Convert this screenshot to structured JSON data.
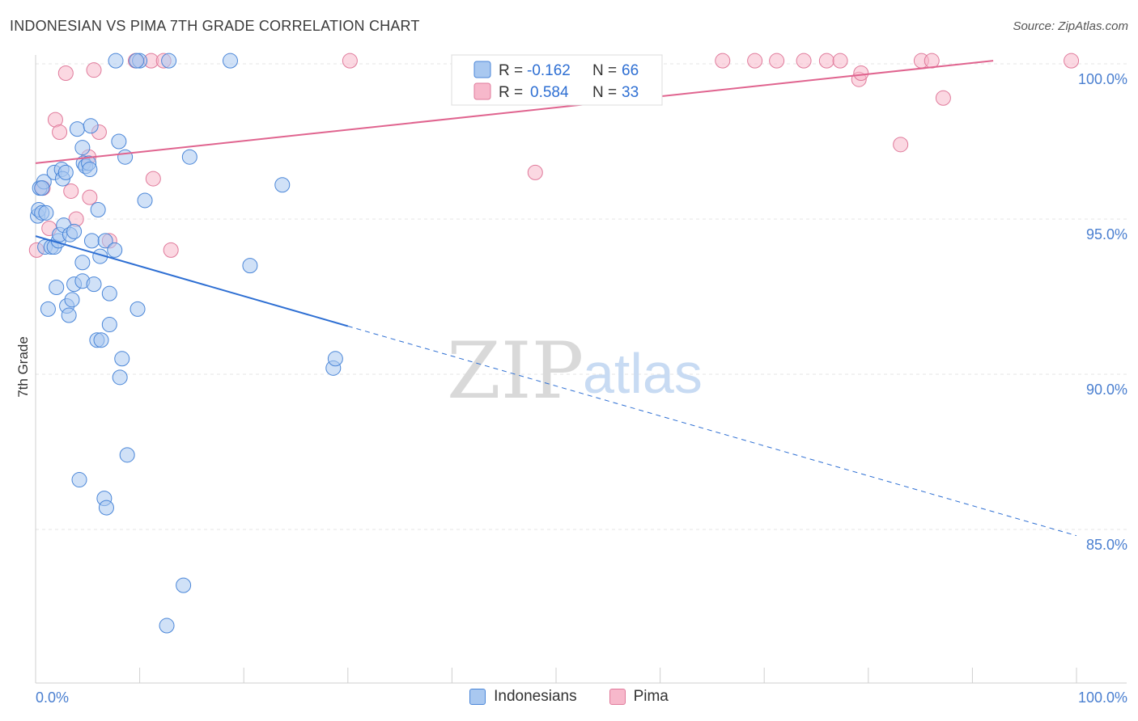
{
  "title": "INDONESIAN VS PIMA 7TH GRADE CORRELATION CHART",
  "source": "Source: ZipAtlas.com",
  "watermark": {
    "zip": "ZIP",
    "atlas": "atlas"
  },
  "colors": {
    "blue_fill": "#a9c8f0",
    "blue_stroke": "#4a86d8",
    "blue_line": "#2e6fd3",
    "pink_fill": "#f7b8cb",
    "pink_stroke": "#e07a9b",
    "pink_line": "#e0648f",
    "grid": "#e4e4e4",
    "tick_label": "#4a7fd0"
  },
  "legend": {
    "rows": [
      {
        "r_label": "R =",
        "r_value": "-0.162",
        "n_label": "N =",
        "n_value": "66",
        "color": "#a9c8f0"
      },
      {
        "r_label": "R =",
        "r_value": "0.584",
        "n_label": "N =",
        "n_value": "33",
        "color": "#f7b8cb"
      }
    ]
  },
  "bottom_legend": [
    {
      "label": "Indonesians",
      "color": "#a9c8f0"
    },
    {
      "label": "Pima",
      "color": "#f7b8cb"
    }
  ],
  "chart_data": {
    "type": "scatter",
    "title": "INDONESIAN VS PIMA 7TH GRADE CORRELATION CHART",
    "xlabel": "",
    "ylabel": "7th Grade",
    "xlim": [
      0,
      100
    ],
    "ylim": [
      80.3,
      101.0
    ],
    "x_tick_labels": [
      "0.0%",
      "100.0%"
    ],
    "y_ticks": [
      85,
      90,
      95,
      100
    ],
    "y_tick_labels": [
      "85.0%",
      "90.0%",
      "95.0%",
      "100.0%"
    ],
    "series": [
      {
        "name": "Indonesians",
        "r": -0.162,
        "n": 66,
        "trend": {
          "x0": 0,
          "y0": 94.45,
          "x1": 30,
          "y1": 91.55,
          "dashed_to_x": 100,
          "dashed_to_y": 84.8
        },
        "points": [
          [
            0.2,
            95.1
          ],
          [
            0.3,
            95.3
          ],
          [
            0.4,
            96.0
          ],
          [
            0.6,
            95.2
          ],
          [
            0.8,
            96.2
          ],
          [
            0.9,
            94.1
          ],
          [
            1.2,
            92.1
          ],
          [
            1.5,
            94.1
          ],
          [
            1.8,
            96.5
          ],
          [
            1.8,
            94.1
          ],
          [
            2.0,
            92.8
          ],
          [
            2.2,
            94.3
          ],
          [
            2.3,
            94.5
          ],
          [
            2.5,
            96.6
          ],
          [
            2.6,
            96.3
          ],
          [
            2.7,
            94.8
          ],
          [
            2.9,
            96.5
          ],
          [
            3.0,
            92.2
          ],
          [
            3.2,
            91.9
          ],
          [
            3.3,
            94.5
          ],
          [
            3.5,
            92.4
          ],
          [
            3.7,
            94.6
          ],
          [
            3.7,
            92.9
          ],
          [
            4.0,
            97.9
          ],
          [
            4.2,
            86.6
          ],
          [
            4.5,
            97.3
          ],
          [
            4.5,
            93.6
          ],
          [
            4.5,
            93.0
          ],
          [
            4.6,
            96.8
          ],
          [
            4.8,
            96.7
          ],
          [
            5.1,
            96.8
          ],
          [
            5.2,
            96.6
          ],
          [
            5.3,
            98.0
          ],
          [
            5.4,
            94.3
          ],
          [
            5.6,
            92.9
          ],
          [
            5.9,
            91.1
          ],
          [
            6.0,
            95.3
          ],
          [
            6.2,
            93.8
          ],
          [
            6.3,
            91.1
          ],
          [
            6.6,
            86.0
          ],
          [
            6.7,
            94.3
          ],
          [
            6.8,
            85.7
          ],
          [
            7.1,
            92.6
          ],
          [
            7.1,
            91.6
          ],
          [
            7.6,
            94.0
          ],
          [
            7.7,
            100.1
          ],
          [
            8.0,
            97.5
          ],
          [
            8.1,
            89.9
          ],
          [
            8.3,
            90.5
          ],
          [
            8.6,
            97.0
          ],
          [
            8.8,
            87.4
          ],
          [
            9.8,
            92.1
          ],
          [
            10.0,
            100.1
          ],
          [
            10.5,
            95.6
          ],
          [
            12.6,
            81.9
          ],
          [
            12.8,
            100.1
          ],
          [
            14.2,
            83.2
          ],
          [
            14.8,
            97.0
          ],
          [
            18.7,
            100.1
          ],
          [
            20.6,
            93.5
          ],
          [
            23.7,
            96.1
          ],
          [
            28.6,
            90.2
          ],
          [
            28.8,
            90.5
          ],
          [
            0.6,
            96.0
          ],
          [
            1.0,
            95.2
          ],
          [
            9.7,
            100.1
          ]
        ]
      },
      {
        "name": "Pima",
        "r": 0.584,
        "n": 33,
        "trend": {
          "x0": 0,
          "y0": 96.8,
          "x1": 92,
          "y1": 100.1
        },
        "points": [
          [
            0.1,
            94.0
          ],
          [
            0.7,
            96.0
          ],
          [
            1.3,
            94.7
          ],
          [
            1.9,
            98.2
          ],
          [
            2.3,
            97.8
          ],
          [
            2.9,
            99.7
          ],
          [
            3.4,
            95.9
          ],
          [
            3.9,
            95.0
          ],
          [
            5.1,
            97.0
          ],
          [
            5.2,
            95.7
          ],
          [
            5.6,
            99.8
          ],
          [
            6.1,
            97.8
          ],
          [
            7.1,
            94.3
          ],
          [
            9.6,
            100.1
          ],
          [
            11.1,
            100.1
          ],
          [
            11.3,
            96.3
          ],
          [
            12.3,
            100.1
          ],
          [
            13.0,
            94.0
          ],
          [
            30.2,
            100.1
          ],
          [
            48.0,
            96.5
          ],
          [
            66.0,
            100.1
          ],
          [
            69.1,
            100.1
          ],
          [
            71.2,
            100.1
          ],
          [
            73.8,
            100.1
          ],
          [
            76.0,
            100.1
          ],
          [
            77.3,
            100.1
          ],
          [
            79.1,
            99.5
          ],
          [
            79.3,
            99.7
          ],
          [
            83.1,
            97.4
          ],
          [
            85.1,
            100.1
          ],
          [
            86.1,
            100.1
          ],
          [
            87.2,
            98.9
          ],
          [
            99.5,
            100.1
          ]
        ]
      }
    ]
  }
}
